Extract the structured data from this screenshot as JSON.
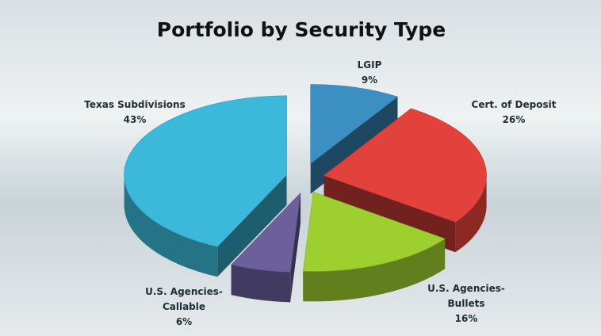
{
  "chart_data": {
    "type": "pie",
    "title": "Portfolio by Security Type",
    "categories": [
      "LGIP",
      "Cert. of Deposit",
      "U.S. Agencies-Bullets",
      "U.S. Agencies-Callable",
      "Texas Subdivisions"
    ],
    "values": [
      9,
      26,
      16,
      6,
      43
    ],
    "value_labels": [
      "9%",
      "26%",
      "16%",
      "6%",
      "43%"
    ],
    "colors": [
      "#3b8fc2",
      "#e2423b",
      "#9dcf2e",
      "#6b5f9c",
      "#3cb9da"
    ]
  }
}
